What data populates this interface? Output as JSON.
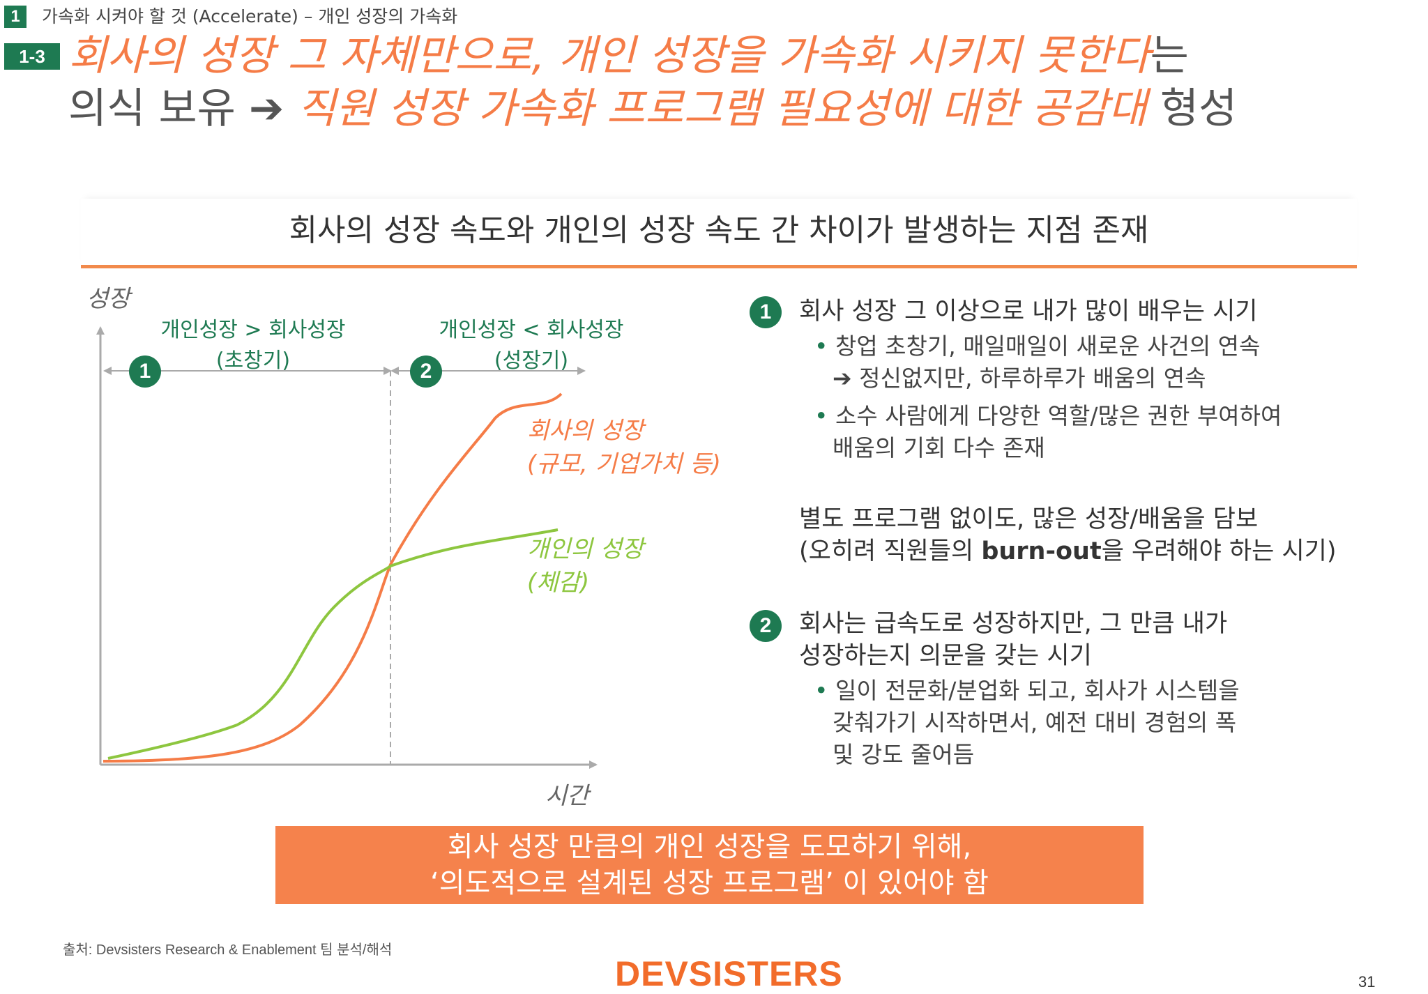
{
  "breadcrumb": {
    "number": "1",
    "text": "가속화 시켜야 할 것 (Accelerate) – 개인 성장의 가속화"
  },
  "title": {
    "number": "1-3",
    "line1_orange": "회사의 성장 그 자체만으로, 개인 성장을 가속화 시키지 못한다",
    "line1_gray": "는",
    "line2_gray": "의식 보유",
    "arrow": "➔",
    "line2_orange": "직원 성장 가속화 프로그램 필요성에 대한 공감대",
    "line2_end": "형성"
  },
  "subtitle": "회사의 성장 속도와 개인의 성장 속도 간 차이가 발생하는 지점 존재",
  "chart": {
    "y_axis_label": "성장",
    "x_axis_label": "시간",
    "phase1": {
      "number": "1",
      "line1": "개인성장 > 회사성장",
      "line2": "(초창기)"
    },
    "phase2": {
      "number": "2",
      "line1": "개인성장 < 회사성장",
      "line2": "(성장기)"
    },
    "company_curve": {
      "line1": "회사의 성장",
      "line2": "(규모, 기업가치 등)",
      "color": "#f57c47"
    },
    "personal_curve": {
      "line1": "개인의 성장",
      "line2": "(체감)",
      "color": "#8dc63f"
    }
  },
  "points": {
    "p1": {
      "number": "1",
      "heading": "회사 성장 그 이상으로 내가 많이 배우는 시기",
      "b1_l1": "창업 초창기, 매일매일이 새로운 사건의 연속",
      "b1_l2": "➔ 정신없지만, 하루하루가 배움의 연속",
      "b2_l1": "소수 사람에게 다양한 역할/많은 권한 부여하여",
      "b2_l2": "배움의 기회 다수 존재"
    },
    "middle": {
      "l1": "별도 프로그램 없이도, 많은 성장/배움을 담보",
      "l2_a": "(오히려 직원들의 ",
      "l2_bold": "burn-out",
      "l2_b": "을 우려해야 하는 시기)"
    },
    "p2": {
      "number": "2",
      "heading_l1": "회사는 급속도로 성장하지만, 그 만큼 내가",
      "heading_l2": "성장하는지 의문을 갖는 시기",
      "b1_l1": "일이 전문화/분업화 되고, 회사가 시스템을",
      "b1_l2": "갖춰가기 시작하면서, 예전 대비 경험의 폭",
      "b1_l3": "및 강도 줄어듬"
    }
  },
  "callout": {
    "line1": "회사 성장 만큼의 개인 성장을 도모하기 위해,",
    "line2": "‘의도적으로 설계된 성장 프로그램’ 이 있어야 함"
  },
  "footer": {
    "source": "출처: Devsisters Research & Enablement 팀 분석/해석",
    "logo": "DEVSISTERS",
    "page_number": "31"
  },
  "colors": {
    "accent_orange": "#f57c47",
    "accent_green": "#1e7a52",
    "light_green": "#8dc63f"
  }
}
